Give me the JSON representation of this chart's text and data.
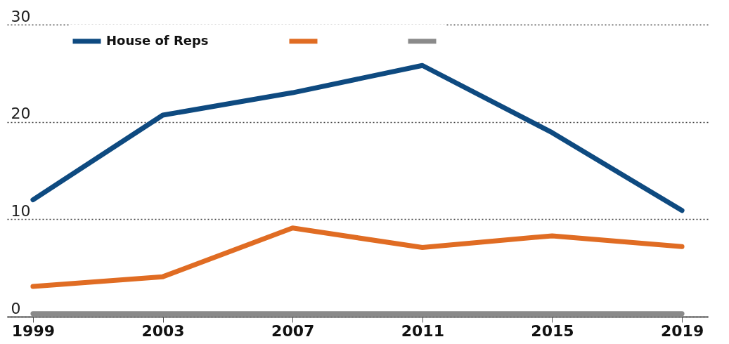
{
  "chart_data": {
    "type": "line",
    "categories": [
      "1999",
      "2003",
      "2007",
      "2011",
      "2015",
      "2019"
    ],
    "series": [
      {
        "name": "House of Reps",
        "color": "#0e4a80",
        "values": [
          12,
          20.7,
          23,
          25.8,
          18.9,
          10.9
        ]
      },
      {
        "color": "#e06c23",
        "values": [
          3.1,
          4.1,
          9.1,
          7.1,
          8.3,
          7.2
        ]
      },
      {
        "color": "#8a8a8a",
        "values": [
          0.3,
          0.3,
          0.3,
          0.3,
          0.3,
          0.3
        ]
      }
    ],
    "ylim": [
      0,
      30
    ],
    "yticks": [
      0,
      10,
      20,
      30
    ],
    "grid": "y",
    "legend": "top left",
    "line_style": "solid",
    "marker": "none"
  }
}
